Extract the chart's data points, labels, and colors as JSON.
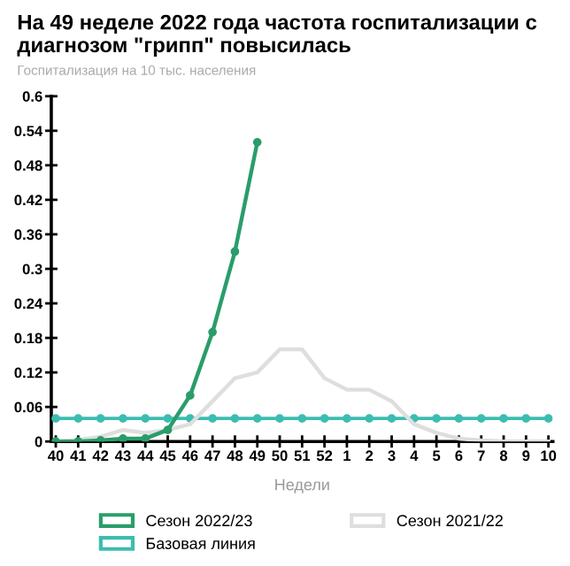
{
  "chart_data": {
    "type": "line",
    "title": "На 49 неделе 2022 года частота госпитализации с диагнозом \"грипп\" повысилась",
    "subtitle": "Госпитализация на 10 тыс. населения",
    "xlabel": "Недели",
    "categories": [
      "40",
      "41",
      "42",
      "43",
      "44",
      "45",
      "46",
      "47",
      "48",
      "49",
      "50",
      "51",
      "52",
      "1",
      "2",
      "3",
      "4",
      "5",
      "6",
      "7",
      "8",
      "9",
      "10"
    ],
    "series": [
      {
        "name": "Сезон 2022/23",
        "color": "#2a9d6a",
        "marker": "circle",
        "values": [
          0,
          0,
          0.002,
          0.005,
          0.005,
          0.02,
          0.08,
          0.19,
          0.33,
          0.52,
          null,
          null,
          null,
          null,
          null,
          null,
          null,
          null,
          null,
          null,
          null,
          null,
          null
        ]
      },
      {
        "name": "Базовая линия",
        "color": "#3bbdb0",
        "marker": "circle",
        "values": [
          0.04,
          0.04,
          0.04,
          0.04,
          0.04,
          0.04,
          0.04,
          0.04,
          0.04,
          0.04,
          0.04,
          0.04,
          0.04,
          0.04,
          0.04,
          0.04,
          0.04,
          0.04,
          0.04,
          0.04,
          0.04,
          0.04,
          0.04
        ]
      },
      {
        "name": "Сезон 2021/22",
        "color": "#dedede",
        "marker": "none",
        "values": [
          0,
          0.003,
          0.008,
          0.02,
          0.015,
          0.02,
          0.03,
          0.07,
          0.11,
          0.12,
          0.16,
          0.16,
          0.11,
          0.09,
          0.09,
          0.07,
          0.03,
          0.015,
          0.005,
          0.002,
          0,
          0,
          0
        ]
      }
    ],
    "ylim": [
      0,
      0.6
    ],
    "yticks": [
      0,
      0.06,
      0.12,
      0.18,
      0.24,
      0.3,
      0.36,
      0.42,
      0.48,
      0.54,
      0.6
    ],
    "grid": false,
    "legend": "bottom"
  }
}
